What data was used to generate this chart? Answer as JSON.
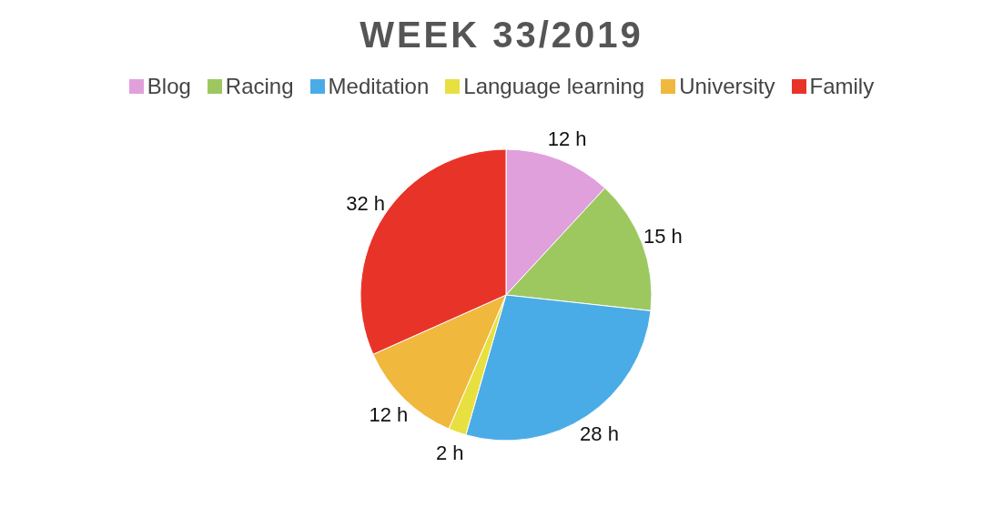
{
  "chart_data": {
    "type": "pie",
    "title": "WEEK 33/2019",
    "categories": [
      "Blog",
      "Racing",
      "Meditation",
      "Language learning",
      "University",
      "Family"
    ],
    "values": [
      12,
      15,
      28,
      2,
      12,
      32
    ],
    "value_labels": [
      "12 h",
      "15 h",
      "28 h",
      "2 h",
      "12 h",
      "32 h"
    ],
    "colors": [
      "#e0a0dc",
      "#9dc860",
      "#4aace6",
      "#e8e040",
      "#f0b83c",
      "#e83428"
    ],
    "legend": "top"
  }
}
